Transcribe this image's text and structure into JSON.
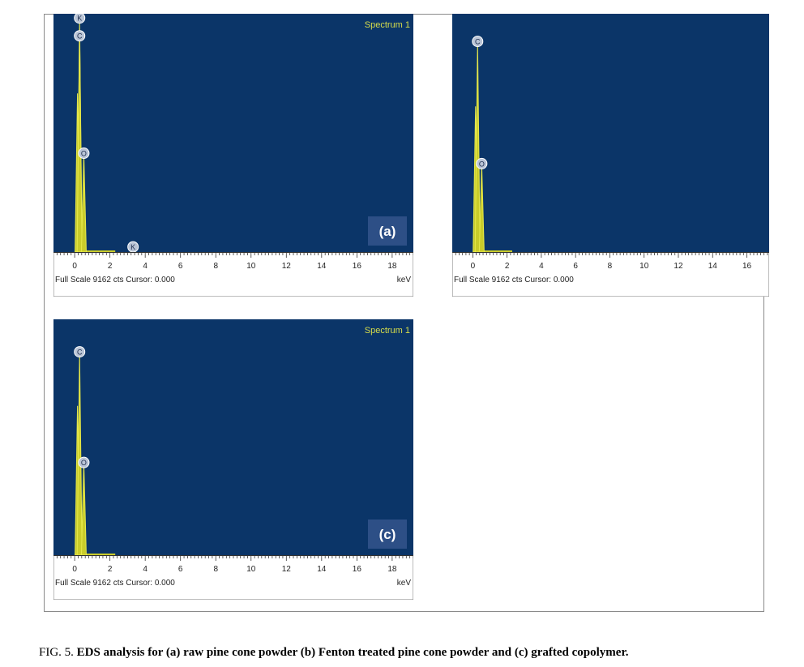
{
  "figure": {
    "caption_prefix": "FIG. 5. ",
    "caption_bold": "EDS analysis for (a) raw pine cone powder (b) Fenton treated pine cone powder and (c) grafted copolymer."
  },
  "colors": {
    "plot_background": "#0b3568",
    "spectrum_line": "#e6e84a",
    "spectrum_fill": "#c9cc2a",
    "title_text": "#d6dc4a",
    "panel_label_bg": "#2d4f86",
    "axis_strip": "#ffffff",
    "marker_fill": "#b9c4d6"
  },
  "chart_data": [
    {
      "id": "a",
      "type": "line",
      "title": "Spectrum 1",
      "panel_label": "(a)",
      "xlabel": "keV",
      "xlim": [
        -1.2,
        19.2
      ],
      "ylim": [
        0,
        9162
      ],
      "ticks": [
        "0",
        "2",
        "4",
        "6",
        "8",
        "10",
        "12",
        "14",
        "16",
        "18"
      ],
      "footer": "Full Scale 9162 cts Cursor: 0.000",
      "peaks": [
        {
          "x": 0.16,
          "y": 6100
        },
        {
          "x": 0.28,
          "y": 9000,
          "marker": "K"
        },
        {
          "x": 0.28,
          "y": 8600,
          "marker": "C"
        },
        {
          "x": 0.52,
          "y": 3800,
          "marker": "O"
        },
        {
          "x": 3.31,
          "y": 200,
          "marker": "K"
        }
      ]
    },
    {
      "id": "b",
      "type": "line",
      "title": "",
      "panel_label": "",
      "xlabel": "",
      "xlim": [
        -1.2,
        17.3
      ],
      "ylim": [
        0,
        9162
      ],
      "ticks": [
        "0",
        "2",
        "4",
        "6",
        "8",
        "10",
        "12",
        "14",
        "16"
      ],
      "footer": "Full Scale 9162 cts Cursor: 0.000",
      "peaks": [
        {
          "x": 0.16,
          "y": 5600
        },
        {
          "x": 0.28,
          "y": 8100,
          "marker": "C"
        },
        {
          "x": 0.52,
          "y": 3400,
          "marker": "O"
        }
      ]
    },
    {
      "id": "c",
      "type": "line",
      "title": "Spectrum 1",
      "panel_label": "(c)",
      "xlabel": "keV",
      "xlim": [
        -1.2,
        19.2
      ],
      "ylim": [
        0,
        9162
      ],
      "ticks": [
        "0",
        "2",
        "4",
        "6",
        "8",
        "10",
        "12",
        "14",
        "16",
        "18"
      ],
      "footer": "Full Scale 9162 cts Cursor: 0.000",
      "peaks": [
        {
          "x": 0.16,
          "y": 5800
        },
        {
          "x": 0.28,
          "y": 7900,
          "marker": "C"
        },
        {
          "x": 0.52,
          "y": 3600,
          "marker": "O"
        }
      ]
    }
  ]
}
